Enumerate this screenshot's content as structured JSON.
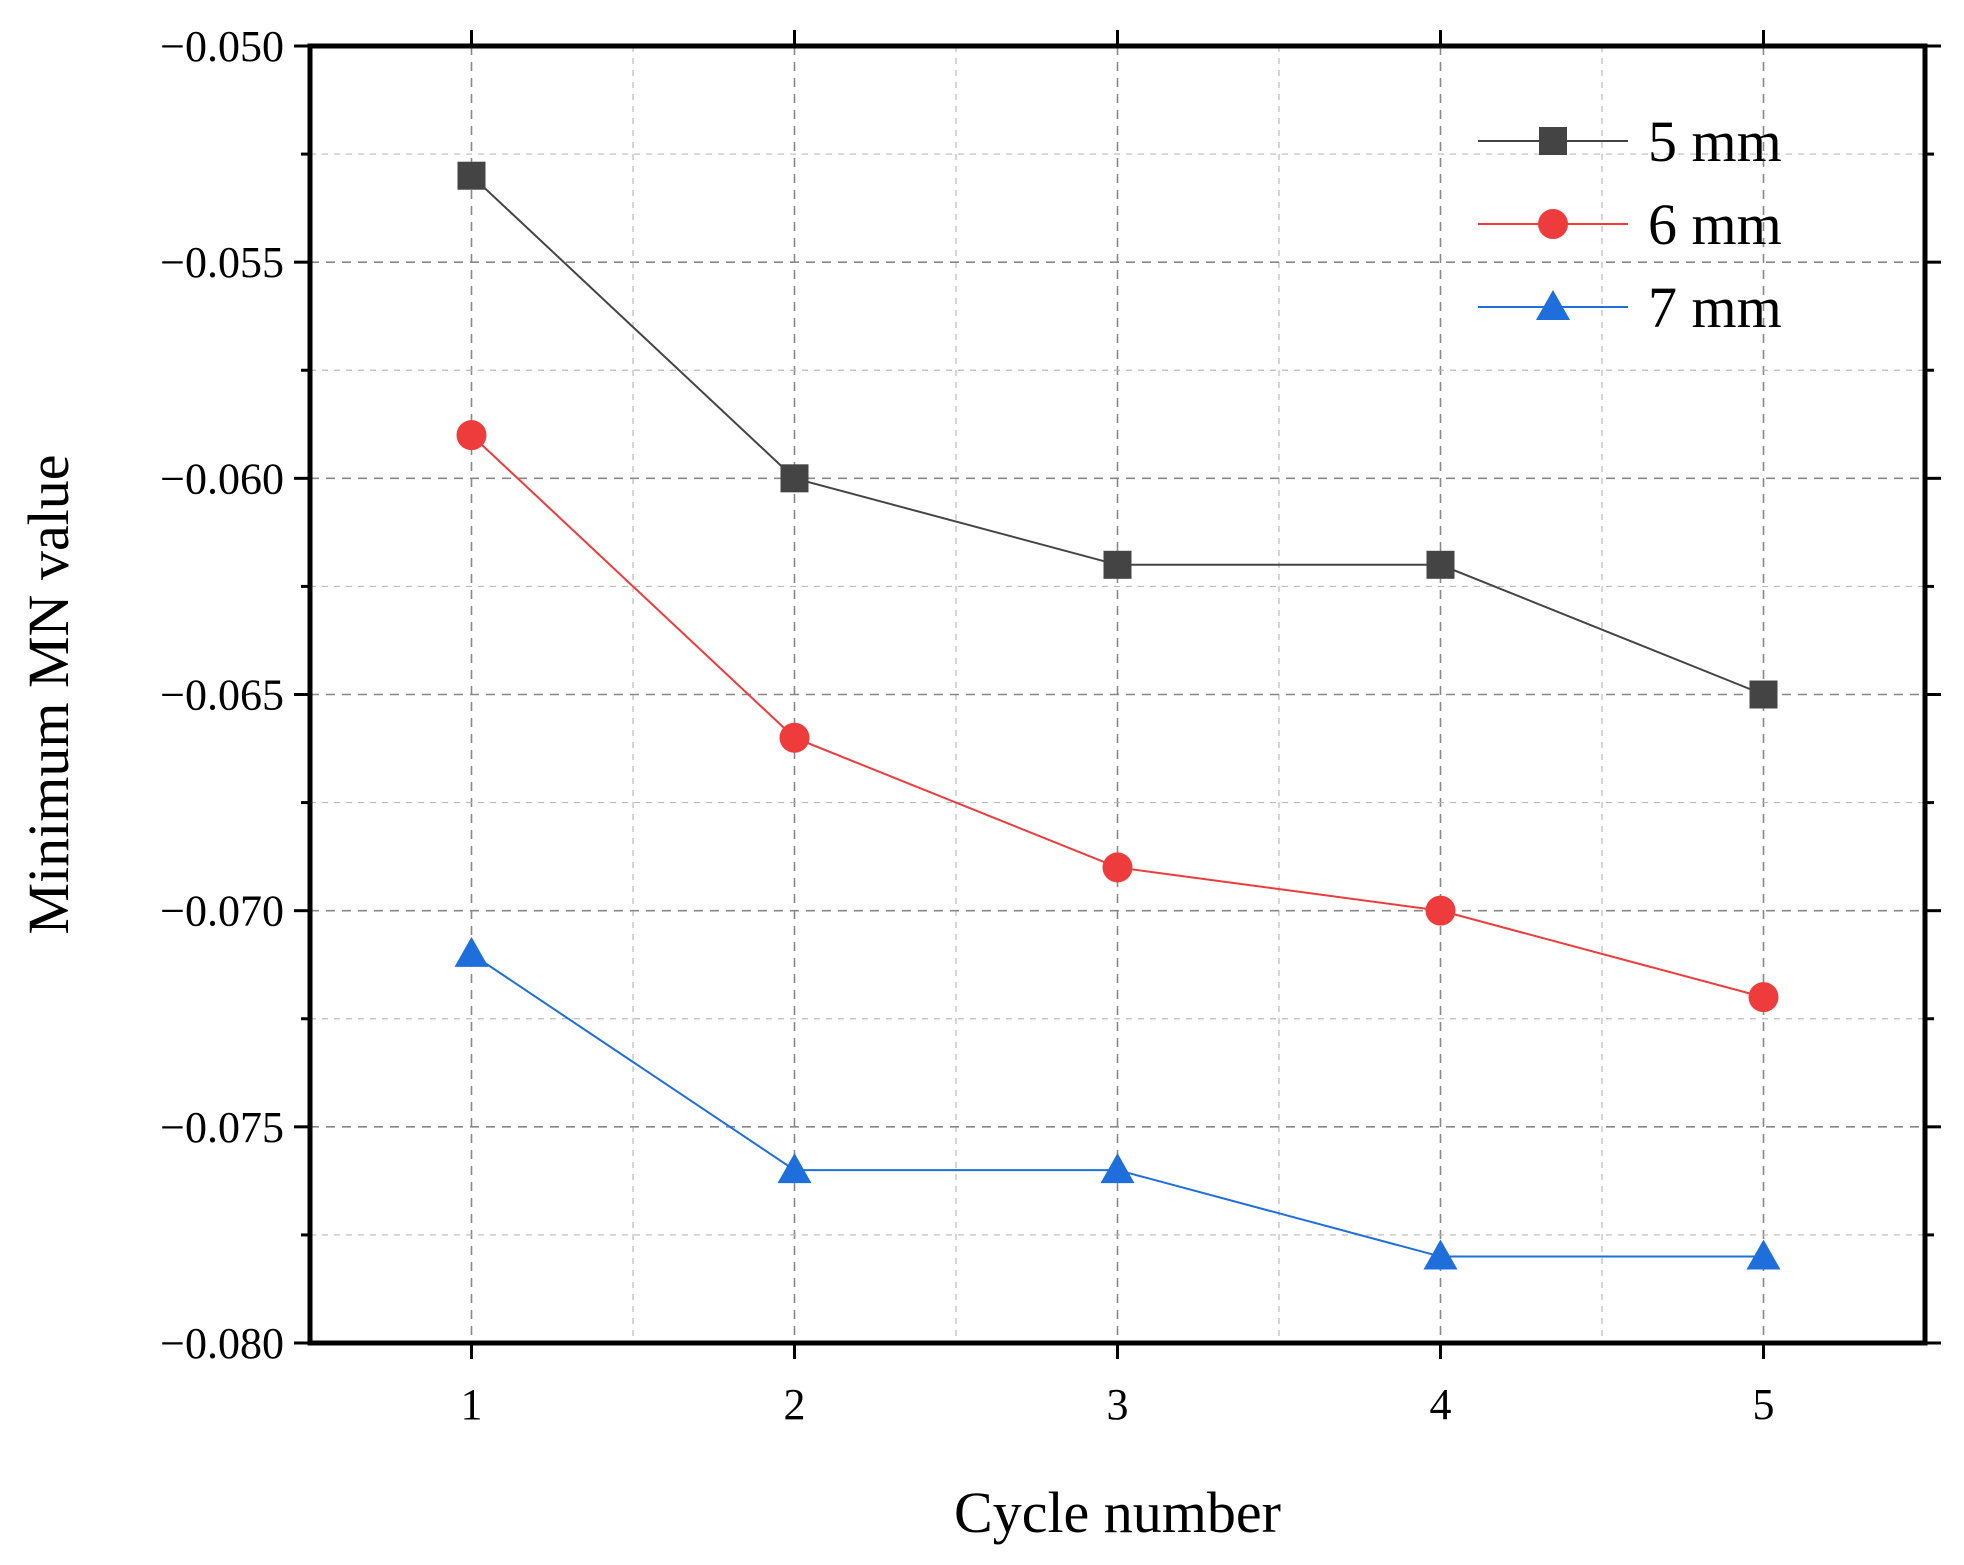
{
  "chart_data": {
    "type": "line",
    "title": "",
    "xlabel": "Cycle number",
    "ylabel": "Minimum MN value",
    "x": [
      1,
      2,
      3,
      4,
      5
    ],
    "xlim": [
      0.5,
      5.5
    ],
    "ylim": [
      -0.08,
      -0.05
    ],
    "x_ticks": [
      1,
      2,
      3,
      4,
      5
    ],
    "x_tick_labels": [
      "1",
      "2",
      "3",
      "4",
      "5"
    ],
    "y_ticks": [
      -0.08,
      -0.075,
      -0.07,
      -0.065,
      -0.06,
      -0.055,
      -0.05
    ],
    "y_tick_labels": [
      "−0.080",
      "−0.075",
      "−0.070",
      "−0.065",
      "−0.060",
      "−0.055",
      "−0.050"
    ],
    "grid": true,
    "legend_position": "top-right",
    "series": [
      {
        "name": "5 mm",
        "marker": "square",
        "color": "#444444",
        "values": [
          -0.053,
          -0.06,
          -0.062,
          -0.062,
          -0.065
        ]
      },
      {
        "name": "6 mm",
        "marker": "circle",
        "color": "#ee3b3b",
        "values": [
          -0.059,
          -0.066,
          -0.069,
          -0.07,
          -0.072
        ]
      },
      {
        "name": "7 mm",
        "marker": "triangle",
        "color": "#1e6fdc",
        "values": [
          -0.071,
          -0.076,
          -0.076,
          -0.078,
          -0.078
        ]
      }
    ]
  }
}
